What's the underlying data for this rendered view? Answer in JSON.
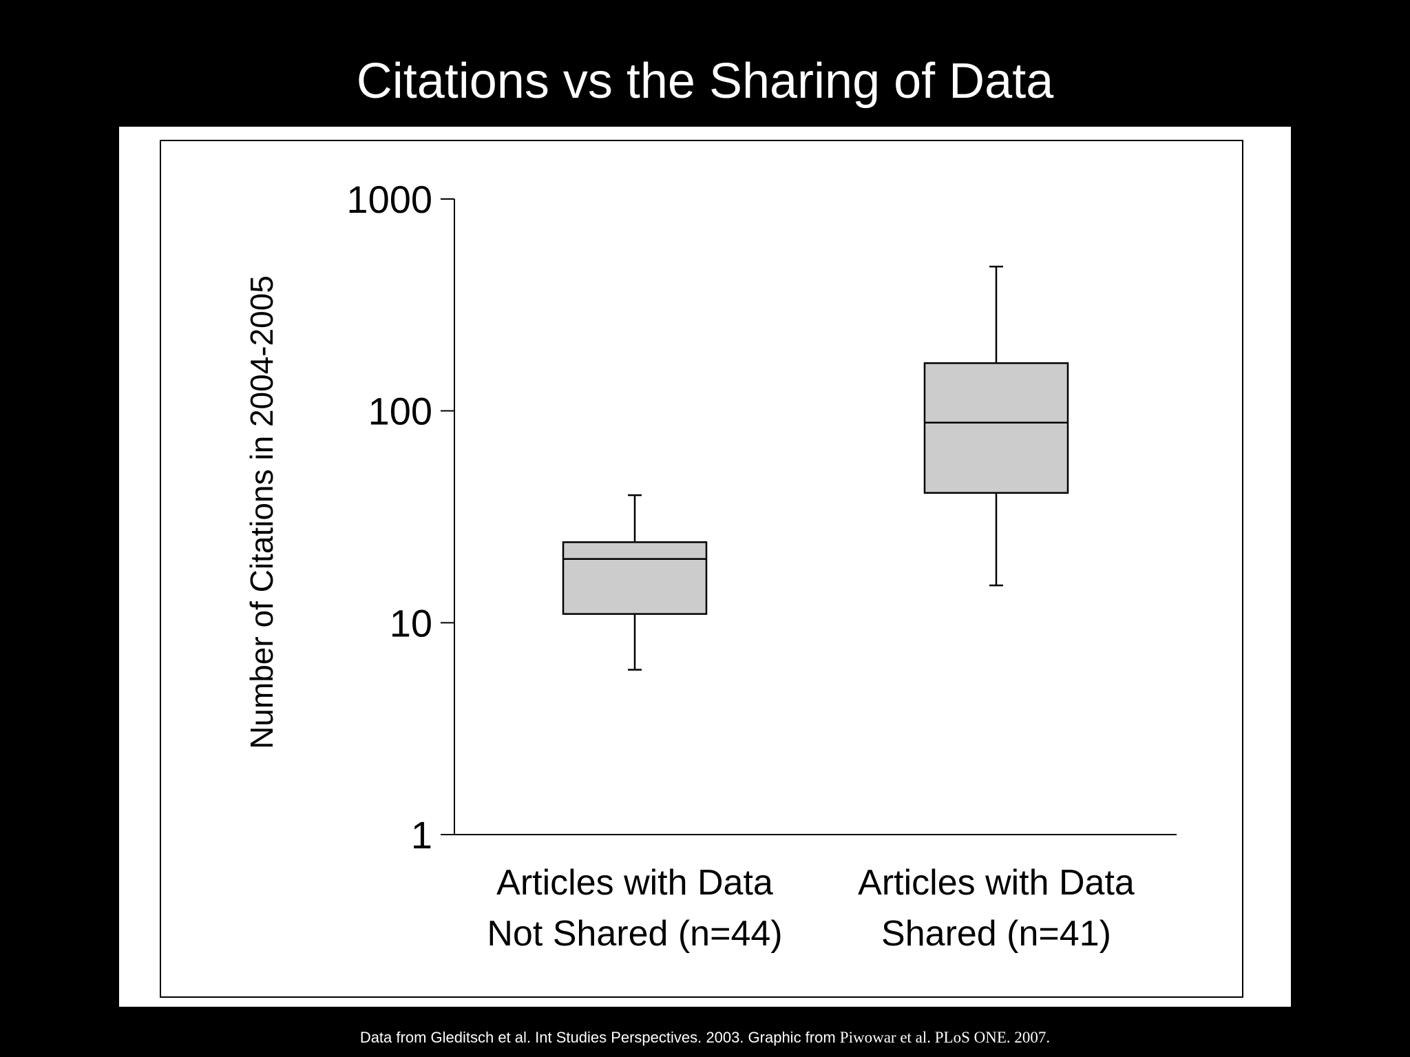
{
  "slide": {
    "title": "Citations vs the Sharing of Data",
    "caption_sans": "Data from Gleditsch et al. Int Studies Perspectives. 2003. Graphic from ",
    "caption_serif": "Piwowar et al. PLoS ONE. 2007."
  },
  "colors": {
    "background": "#000000",
    "panel": "#ffffff",
    "box_fill": "#cccccc",
    "stroke": "#000000"
  },
  "chart_data": {
    "type": "boxplot",
    "title": "Citations vs the Sharing of Data",
    "ylabel": "Number of Citations in 2004-2005",
    "yscale": "log",
    "ylim": [
      1,
      1000
    ],
    "yticks": [
      1,
      10,
      100,
      1000
    ],
    "ytick_labels": [
      "1",
      "10",
      "100",
      "1000"
    ],
    "grid": false,
    "categories": [
      {
        "lines": [
          "Articles with Data",
          "Not Shared (n=44)"
        ]
      },
      {
        "lines": [
          "Articles with Data",
          "Shared (n=41)"
        ]
      }
    ],
    "boxes": [
      {
        "whisker_low": 6,
        "q1": 11,
        "median": 20,
        "q3": 24,
        "whisker_high": 40
      },
      {
        "whisker_low": 15,
        "q1": 41,
        "median": 88,
        "q3": 168,
        "whisker_high": 480
      }
    ]
  }
}
